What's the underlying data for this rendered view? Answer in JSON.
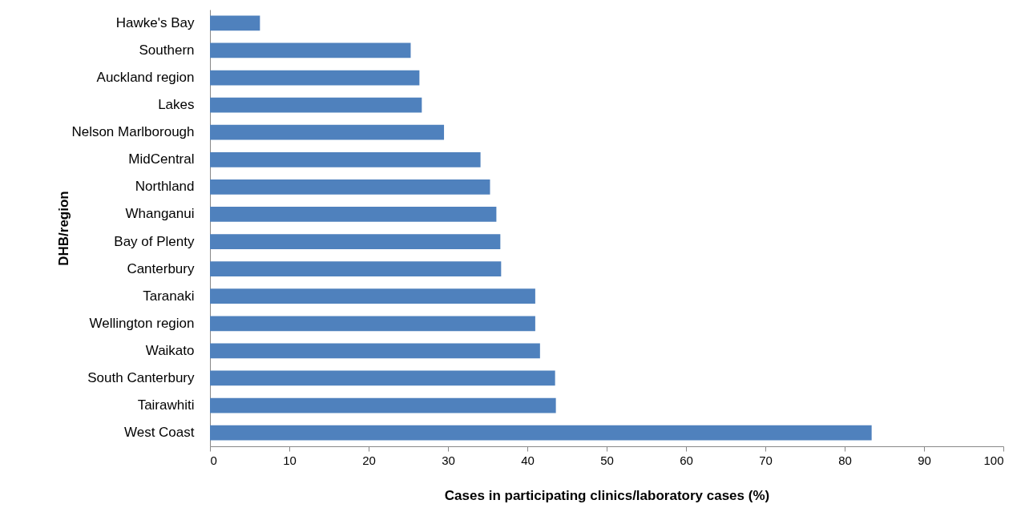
{
  "chart_data": {
    "type": "bar",
    "orientation": "horizontal",
    "xlabel": "Cases in participating  clinics/laboratory  cases (%)",
    "ylabel": "DHB/region",
    "categories": [
      "Hawke's Bay",
      "Southern",
      "Auckland region",
      "Lakes",
      "Nelson Marlborough",
      "MidCentral",
      "Northland",
      "Whanganui",
      "Bay of Plenty",
      "Canterbury",
      "Taranaki",
      "Wellington region",
      "Waikato",
      "South Canterbury",
      "Tairawhiti",
      "West Coast"
    ],
    "values": [
      6.3,
      25.3,
      26.4,
      26.7,
      29.5,
      34.1,
      35.3,
      36.1,
      36.6,
      36.7,
      41.0,
      41.0,
      41.6,
      43.5,
      43.6,
      83.4
    ],
    "color": "#4f81bd",
    "xlim": [
      0,
      100
    ],
    "xticks": [
      0,
      10,
      20,
      30,
      40,
      50,
      60,
      70,
      80,
      90,
      100
    ],
    "grid": false
  }
}
